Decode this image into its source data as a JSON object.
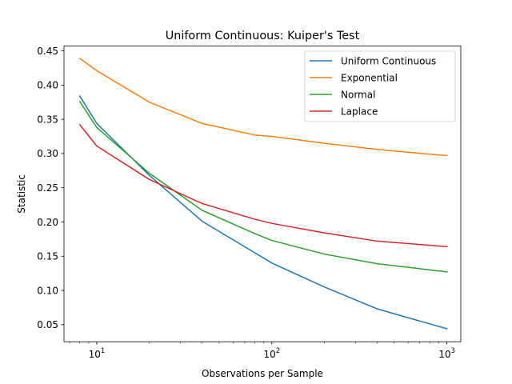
{
  "chart_data": {
    "type": "line",
    "title": "Uniform Continuous: Kuiper's Test",
    "xlabel": "Observations per Sample",
    "ylabel": "Statistic",
    "xscale": "log",
    "xlim": [
      6.5,
      1200
    ],
    "ylim": [
      0.025,
      0.457
    ],
    "x_ticks": [
      {
        "value": 10,
        "base": "10",
        "exp": "1"
      },
      {
        "value": 100,
        "base": "10",
        "exp": "2"
      },
      {
        "value": 1000,
        "base": "10",
        "exp": "3"
      }
    ],
    "y_ticks": [
      0.05,
      0.1,
      0.15,
      0.2,
      0.25,
      0.3,
      0.35,
      0.4,
      0.45
    ],
    "y_tick_labels": [
      "0.05",
      "0.10",
      "0.15",
      "0.20",
      "0.25",
      "0.30",
      "0.35",
      "0.40",
      "0.45"
    ],
    "grid": false,
    "legend_position": "top-right",
    "x": [
      8,
      10,
      20,
      40,
      80,
      100,
      200,
      400,
      800,
      1000
    ],
    "series": [
      {
        "name": "Uniform Continuous",
        "color": "#1f77b4",
        "values": [
          0.384,
          0.344,
          0.268,
          0.201,
          0.155,
          0.14,
          0.105,
          0.073,
          0.051,
          0.044
        ]
      },
      {
        "name": "Exponential",
        "color": "#ff7f0e",
        "values": [
          0.439,
          0.421,
          0.375,
          0.344,
          0.327,
          0.325,
          0.315,
          0.306,
          0.299,
          0.297
        ]
      },
      {
        "name": "Normal",
        "color": "#2ca02c",
        "values": [
          0.376,
          0.338,
          0.271,
          0.217,
          0.183,
          0.173,
          0.153,
          0.139,
          0.13,
          0.127
        ]
      },
      {
        "name": "Laplace",
        "color": "#d62728",
        "values": [
          0.342,
          0.311,
          0.262,
          0.227,
          0.204,
          0.198,
          0.184,
          0.172,
          0.166,
          0.164
        ]
      }
    ]
  }
}
